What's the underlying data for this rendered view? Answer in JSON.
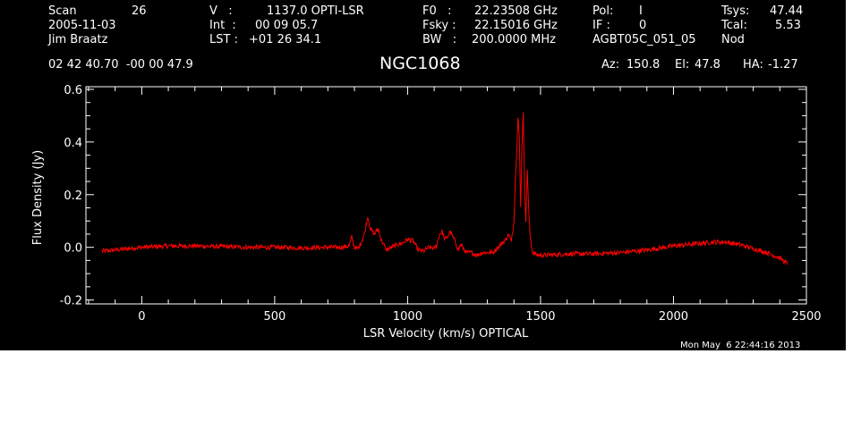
{
  "header": {
    "scan_label": "Scan",
    "scan_value": "26",
    "date": "2005-11-03",
    "observer": "Jim Braatz",
    "coords": "02 42 40.70  -00 00 47.9",
    "v_label": "V   :",
    "v_value": "1137.0 OPTI-LSR",
    "int_label": "Int  :",
    "int_value": "00 09 05.7",
    "lst_label": "LST :",
    "lst_value": "+01 26 34.1",
    "f0_label": "F0   :",
    "f0_value": "22.23508 GHz",
    "fsky_label": "Fsky :",
    "fsky_value": "22.15016 GHz",
    "bw_label": "BW   :",
    "bw_value": "200.0000 MHz",
    "pol_label": "Pol:",
    "pol_value": "I",
    "if_label": "IF :",
    "if_value": "0",
    "project": "AGBT05C_051_05",
    "tsys_label": "Tsys:",
    "tsys_value": "47.44",
    "tcal_label": "Tcal:",
    "tcal_value": "5.53",
    "mode": "Nod",
    "object": "NGC1068",
    "az_label": "Az:",
    "az_value": "150.8",
    "el_label": "El:",
    "el_value": "47.8",
    "ha_label": "HA:",
    "ha_value": "-1.27"
  },
  "timestamp": "Mon May  6 22:44:16 2013",
  "colors": {
    "background": "#000000",
    "axes": "#ffffff",
    "trace": "#ff0000"
  },
  "chart_data": {
    "type": "line",
    "xlabel": "LSR Velocity (km/s) OPTICAL",
    "ylabel": "Flux Density (Jy)",
    "xlim": [
      -210,
      2500
    ],
    "ylim": [
      -0.215,
      0.61
    ],
    "xticks": [
      0,
      500,
      1000,
      1500,
      2000,
      2500
    ],
    "yticks": [
      -0.2,
      0.0,
      0.2,
      0.4,
      0.6
    ],
    "ytick_labels": [
      "-0.2",
      "0.0",
      "0.2",
      "0.4",
      "0.6"
    ],
    "grid": false,
    "series": [
      {
        "color": "#ff0000",
        "x": [
          -150,
          -100,
          0,
          100,
          200,
          300,
          400,
          500,
          600,
          700,
          750,
          780,
          790,
          800,
          815,
          830,
          840,
          850,
          860,
          875,
          890,
          900,
          920,
          940,
          960,
          980,
          1000,
          1020,
          1040,
          1060,
          1080,
          1100,
          1110,
          1120,
          1130,
          1140,
          1150,
          1160,
          1170,
          1180,
          1190,
          1200,
          1220,
          1240,
          1260,
          1280,
          1300,
          1320,
          1340,
          1350,
          1360,
          1370,
          1380,
          1390,
          1400,
          1405,
          1410,
          1415,
          1420,
          1425,
          1430,
          1435,
          1440,
          1445,
          1450,
          1455,
          1460,
          1470,
          1490,
          1520,
          1600,
          1700,
          1800,
          1900,
          2000,
          2100,
          2150,
          2200,
          2250,
          2300,
          2350,
          2400,
          2430
        ],
        "y": [
          -0.015,
          -0.01,
          0.0,
          0.005,
          0.005,
          0.003,
          0.0,
          0.0,
          -0.002,
          0.0,
          0.0,
          0.005,
          0.04,
          0.0,
          -0.005,
          0.03,
          0.06,
          0.12,
          0.07,
          0.05,
          0.07,
          0.03,
          -0.01,
          0.0,
          0.01,
          0.015,
          0.03,
          0.025,
          -0.01,
          -0.015,
          0.0,
          -0.005,
          0.01,
          0.05,
          0.06,
          0.03,
          0.04,
          0.06,
          0.04,
          0.02,
          -0.01,
          0.01,
          -0.02,
          -0.02,
          -0.03,
          -0.02,
          -0.02,
          -0.02,
          0.0,
          0.01,
          0.02,
          0.03,
          0.05,
          0.02,
          0.1,
          0.25,
          0.35,
          0.5,
          0.42,
          0.15,
          0.38,
          0.52,
          0.22,
          0.1,
          0.3,
          0.15,
          0.05,
          -0.02,
          -0.03,
          -0.03,
          -0.025,
          -0.025,
          -0.02,
          -0.01,
          0.005,
          0.015,
          0.02,
          0.02,
          0.01,
          -0.005,
          -0.02,
          -0.04,
          -0.065
        ]
      }
    ]
  }
}
